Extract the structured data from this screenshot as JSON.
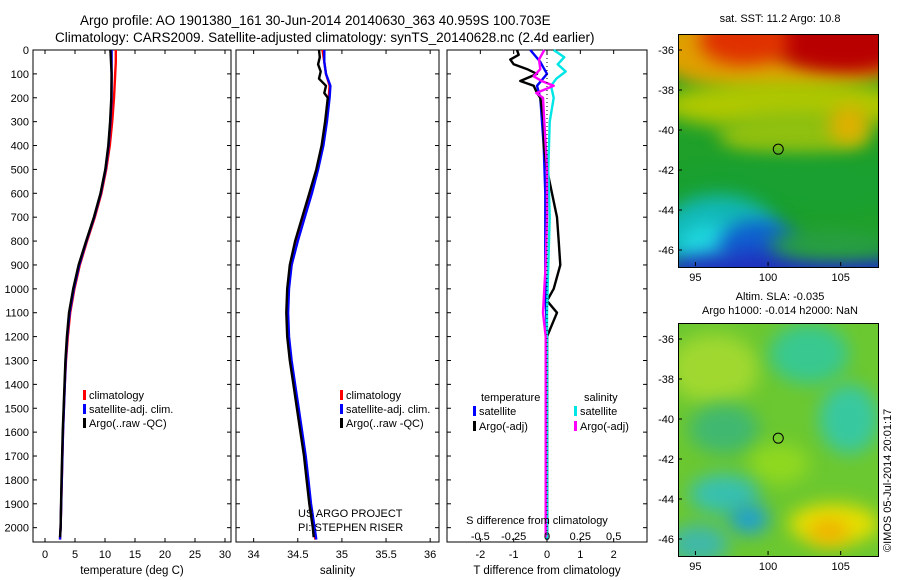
{
  "header": {
    "line1": "Argo profile: AO 1901380_161 30-Jun-2014 20140630_363 40.959S 100.703E",
    "line2": "Climatology: CARS2009. Satellite-adjusted climatology: synTS_20140628.nc (2.4d earlier)"
  },
  "colors": {
    "climatology": "#ff0000",
    "satellite": "#0000ff",
    "argo": "#000000",
    "s_satellite": "#00e5e5",
    "s_argo": "#ff00ff"
  },
  "chart_data": [
    {
      "type": "line",
      "title": "",
      "xlabel": "temperature (deg C)",
      "ylabel": "",
      "xlim": [
        -2,
        31
      ],
      "ylim": [
        2060,
        0
      ],
      "xticks": [
        0,
        5,
        10,
        15,
        20,
        25,
        30
      ],
      "yticks": [
        0,
        100,
        200,
        300,
        400,
        500,
        600,
        700,
        800,
        900,
        1000,
        1100,
        1200,
        1300,
        1400,
        1500,
        1600,
        1700,
        1800,
        1900,
        2000
      ],
      "legend": [
        "climatology",
        "satellite-adj. clim.",
        "Argo(..raw -QC)"
      ],
      "legend_position": "bottom-right",
      "series": [
        {
          "name": "climatology",
          "y": [
            0,
            50,
            100,
            200,
            300,
            400,
            500,
            600,
            700,
            800,
            900,
            1000,
            1100,
            1200,
            1300,
            1400,
            1500,
            1600,
            1800,
            2000,
            2050
          ],
          "values": [
            11.8,
            11.8,
            11.7,
            11.5,
            11.2,
            10.8,
            10.2,
            9.4,
            8.3,
            7.0,
            5.8,
            4.9,
            4.2,
            3.8,
            3.5,
            3.3,
            3.15,
            3.0,
            2.8,
            2.6,
            2.5
          ]
        },
        {
          "name": "satellite-adj. clim.",
          "y": [
            0,
            50,
            100,
            200,
            300,
            400,
            500,
            600,
            700,
            800,
            900,
            1000,
            1100,
            1200,
            1300,
            1400,
            1500,
            1600,
            1800,
            2000,
            2050
          ],
          "values": [
            11.1,
            11.1,
            11.1,
            11.1,
            10.9,
            10.6,
            10.1,
            9.3,
            8.2,
            6.9,
            5.7,
            4.8,
            4.1,
            3.7,
            3.45,
            3.3,
            3.15,
            3.0,
            2.8,
            2.6,
            2.5
          ]
        },
        {
          "name": "Argo(..raw -QC)",
          "y": [
            0,
            50,
            100,
            200,
            300,
            400,
            500,
            600,
            700,
            800,
            900,
            1000,
            1100,
            1200,
            1300,
            1400,
            1500,
            1600,
            1800,
            2000,
            2040
          ],
          "values": [
            10.9,
            11.0,
            11.1,
            11.05,
            10.85,
            10.55,
            10.05,
            9.25,
            8.15,
            6.85,
            5.6,
            4.7,
            4.0,
            3.65,
            3.4,
            3.25,
            3.1,
            2.95,
            2.75,
            2.6,
            2.5
          ]
        }
      ]
    },
    {
      "type": "line",
      "title": "",
      "xlabel": "salinity",
      "ylabel": "",
      "xlim": [
        33.8,
        36.1
      ],
      "ylim": [
        2060,
        0
      ],
      "xticks": [
        34,
        34.5,
        35,
        35.5,
        36
      ],
      "xtick_labels": [
        "34",
        "34.5",
        "35",
        "35.5",
        "36"
      ],
      "legend": [
        "climatology",
        "satellite-adj. clim.",
        "Argo(..raw -QC)"
      ],
      "legend_position": "bottom-right",
      "annotation": [
        "US ARGO PROJECT",
        "PI: STEPHEN RISER"
      ],
      "series": [
        {
          "name": "climatology",
          "y": [
            0,
            50,
            100,
            150,
            200,
            300,
            400,
            500,
            600,
            700,
            800,
            900,
            1000,
            1100,
            1200,
            1300,
            1400,
            1500,
            1600,
            1700,
            1800,
            1900,
            2000,
            2050
          ],
          "values": [
            34.78,
            34.8,
            34.82,
            34.86,
            34.85,
            34.82,
            34.78,
            34.72,
            34.65,
            34.57,
            34.49,
            34.43,
            34.39,
            34.38,
            34.39,
            34.42,
            34.46,
            34.5,
            34.54,
            34.58,
            34.61,
            34.64,
            34.68,
            34.7
          ]
        },
        {
          "name": "satellite-adj. clim.",
          "y": [
            0,
            50,
            100,
            150,
            200,
            300,
            400,
            500,
            600,
            700,
            800,
            900,
            1000,
            1100,
            1200,
            1300,
            1400,
            1500,
            1600,
            1700,
            1800,
            1900,
            2000,
            2050
          ],
          "values": [
            34.8,
            34.8,
            34.82,
            34.87,
            34.86,
            34.83,
            34.79,
            34.73,
            34.66,
            34.58,
            34.5,
            34.43,
            34.4,
            34.39,
            34.4,
            34.43,
            34.47,
            34.51,
            34.55,
            34.59,
            34.62,
            34.65,
            34.69,
            34.71
          ]
        },
        {
          "name": "Argo(..raw -QC)",
          "y": [
            0,
            30,
            60,
            90,
            120,
            150,
            180,
            200,
            300,
            400,
            500,
            600,
            700,
            800,
            900,
            1000,
            1100,
            1200,
            1300,
            1400,
            1500,
            1600,
            1700,
            1800,
            1900,
            2000,
            2040
          ],
          "values": [
            34.74,
            34.75,
            34.73,
            34.76,
            34.74,
            34.82,
            34.8,
            34.84,
            34.81,
            34.77,
            34.71,
            34.63,
            34.55,
            34.47,
            34.41,
            34.38,
            34.37,
            34.38,
            34.41,
            34.45,
            34.49,
            34.53,
            34.57,
            34.6,
            34.63,
            34.67,
            34.68
          ]
        }
      ]
    },
    {
      "type": "line",
      "title": "",
      "xlabel": "T difference from climatology",
      "ylabel": "",
      "xlim": [
        -3,
        3
      ],
      "ylim": [
        2060,
        0
      ],
      "xticks": [
        -2,
        -1,
        0,
        1,
        2
      ],
      "x2label": "S difference from climatology",
      "x2ticks": [
        -0.5,
        -0.25,
        0,
        0.25,
        0.5
      ],
      "x2tick_labels": [
        "-0.5",
        "-0.25",
        "0",
        "0.25",
        "0.5"
      ],
      "legend_headers": [
        "temperature",
        "salinity"
      ],
      "legend": [
        "satellite",
        "Argo(-adj)",
        "satellite",
        "Argo(-adj)"
      ],
      "legend_position": "bottom",
      "series": [
        {
          "name": "T satellite",
          "y": [
            0,
            50,
            100,
            150,
            200,
            300,
            400,
            600,
            800,
            1000,
            1200,
            1500,
            2000,
            2050
          ],
          "values": [
            -0.5,
            -0.2,
            0.0,
            -0.3,
            -0.2,
            -0.15,
            -0.1,
            -0.05,
            -0.05,
            -0.05,
            0.0,
            0.0,
            0.0,
            0.0
          ]
        },
        {
          "name": "T Argo(-adj)",
          "y": [
            0,
            20,
            40,
            60,
            80,
            100,
            130,
            150,
            180,
            200,
            250,
            300,
            400,
            500,
            700,
            800,
            900,
            1000,
            1050,
            1100,
            1200,
            1500,
            2000,
            2040
          ],
          "values": [
            -0.9,
            -0.85,
            -1.1,
            -1.0,
            -0.6,
            -0.3,
            -0.8,
            -0.4,
            -0.3,
            -0.2,
            -0.15,
            -0.1,
            -0.1,
            0.0,
            0.3,
            0.35,
            0.4,
            0.2,
            0.0,
            0.3,
            0.0,
            0.0,
            0.0,
            0.0
          ]
        },
        {
          "name": "S satellite",
          "y": [
            0,
            30,
            60,
            90,
            120,
            150,
            200,
            300,
            500,
            700,
            900,
            1100,
            1500,
            2000,
            2050
          ],
          "values": [
            0.05,
            0.13,
            0.08,
            0.14,
            0.07,
            0.03,
            0.05,
            0.02,
            0.01,
            0.02,
            0.01,
            0.0,
            0.0,
            0.0,
            0.0
          ]
        },
        {
          "name": "S Argo(-adj)",
          "y": [
            0,
            40,
            80,
            110,
            130,
            150,
            180,
            200,
            300,
            400,
            500,
            700,
            900,
            1000,
            1100,
            1200,
            1500,
            2000,
            2040
          ],
          "values": [
            -0.02,
            -0.06,
            -0.05,
            -0.1,
            -0.04,
            0.05,
            -0.08,
            -0.03,
            -0.02,
            -0.01,
            0.0,
            0.0,
            -0.01,
            -0.02,
            -0.03,
            -0.01,
            -0.01,
            -0.01,
            -0.01
          ]
        }
      ]
    }
  ],
  "maps": {
    "sst": {
      "title": "sat. SST: 11.2 Argo: 10.8",
      "lat_ticks": [
        "-36",
        "-38",
        "-40",
        "-42",
        "-44",
        "-46"
      ],
      "lon_ticks": [
        "95",
        "100",
        "105"
      ],
      "marker_lat": -40.959,
      "marker_lon": 100.703
    },
    "sla": {
      "title1": "Altim. SLA: -0.035",
      "title2": "Argo h1000: -0.014 h2000: NaN",
      "lat_ticks": [
        "-36",
        "-38",
        "-40",
        "-42",
        "-44",
        "-46"
      ],
      "lon_ticks": [
        "95",
        "100",
        "105"
      ],
      "marker_lat": -40.959,
      "marker_lon": 100.703
    },
    "credit": "©IMOS 05-Jul-2014 20:01:17"
  }
}
